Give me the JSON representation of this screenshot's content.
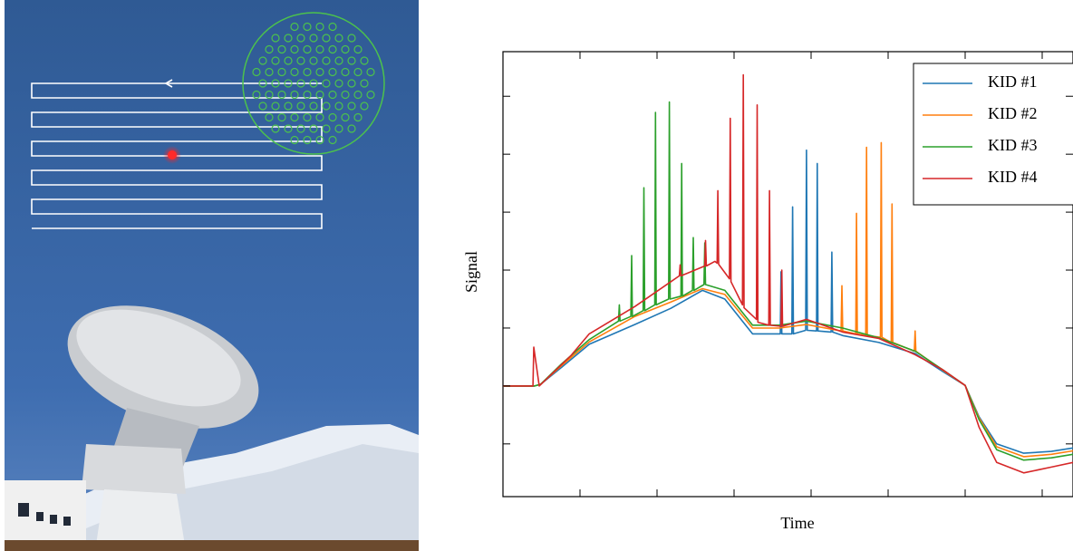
{
  "chart_data": {
    "type": "line",
    "xlabel": "Time",
    "ylabel": "Signal",
    "xlim": [
      0,
      7.4
    ],
    "xticks": [
      1,
      2,
      3,
      4,
      5,
      6,
      7
    ],
    "ylim": [
      0.09,
      7.77
    ],
    "yticks": [
      1,
      2,
      3,
      4,
      5,
      6,
      7
    ],
    "legend": "upper right",
    "series": [
      {
        "name": "KID #1",
        "color": "#1f77b4",
        "x": [
          0,
          0.41,
          0.49,
          0.76,
          1.12,
          1.71,
          2.18,
          2.59,
          2.88,
          3.24,
          3.59,
          3.6,
          3.61,
          3.62,
          3.75,
          3.76,
          3.77,
          3.93,
          3.94,
          3.95,
          4.07,
          4.08,
          4.09,
          4.26,
          4.27,
          4.28,
          4.41,
          4.88,
          5.35,
          5.71,
          6.0,
          6.18,
          6.41,
          6.76,
          7.12,
          7.4
        ],
        "values": [
          2.0,
          2.0,
          2.03,
          2.32,
          2.72,
          3.06,
          3.34,
          3.65,
          3.5,
          2.9,
          2.9,
          2.9,
          3.97,
          2.9,
          2.9,
          5.09,
          2.9,
          2.96,
          6.07,
          2.96,
          2.95,
          5.84,
          2.95,
          2.93,
          4.31,
          2.93,
          2.87,
          2.75,
          2.56,
          2.25,
          2.01,
          1.47,
          1.0,
          0.84,
          0.87,
          0.93
        ]
      },
      {
        "name": "KID #2",
        "color": "#ff7f0e",
        "x": [
          0,
          0.41,
          0.49,
          0.76,
          1.12,
          1.71,
          2.18,
          2.59,
          2.88,
          3.24,
          3.59,
          3.94,
          4.39,
          4.4,
          4.41,
          4.58,
          4.59,
          4.6,
          4.71,
          4.72,
          4.73,
          4.9,
          4.91,
          4.92,
          5.04,
          5.05,
          5.06,
          5.34,
          5.35,
          5.36,
          5.71,
          6.0,
          6.18,
          6.41,
          6.76,
          7.12,
          7.4
        ],
        "values": [
          2.0,
          2.0,
          2.03,
          2.35,
          2.76,
          3.2,
          3.45,
          3.68,
          3.58,
          3.0,
          3.0,
          3.06,
          2.95,
          3.73,
          2.95,
          2.9,
          4.98,
          2.9,
          2.87,
          6.12,
          2.87,
          2.84,
          6.2,
          2.84,
          2.75,
          5.14,
          2.75,
          2.6,
          2.95,
          2.6,
          2.27,
          2.01,
          1.45,
          0.95,
          0.78,
          0.82,
          0.88
        ]
      },
      {
        "name": "KID #3",
        "color": "#2ca02c",
        "x": [
          0,
          0.41,
          0.49,
          0.76,
          1.12,
          1.5,
          1.51,
          1.52,
          1.66,
          1.67,
          1.68,
          1.82,
          1.83,
          1.84,
          1.97,
          1.98,
          1.99,
          2.15,
          2.16,
          2.17,
          2.31,
          2.32,
          2.33,
          2.46,
          2.47,
          2.48,
          2.61,
          2.62,
          2.63,
          2.88,
          3.24,
          3.59,
          3.94,
          4.41,
          4.88,
          5.35,
          5.71,
          6.0,
          6.18,
          6.41,
          6.76,
          7.12,
          7.4
        ],
        "values": [
          2.0,
          2.0,
          2.03,
          2.38,
          2.8,
          3.12,
          3.4,
          3.12,
          3.2,
          4.25,
          3.2,
          3.3,
          5.42,
          3.3,
          3.4,
          6.72,
          3.4,
          3.5,
          6.9,
          3.5,
          3.55,
          5.84,
          3.55,
          3.65,
          4.56,
          3.65,
          3.75,
          4.47,
          3.75,
          3.65,
          3.05,
          3.05,
          3.12,
          3.0,
          2.83,
          2.6,
          2.28,
          2.01,
          1.42,
          0.9,
          0.72,
          0.76,
          0.82
        ]
      },
      {
        "name": "KID #4",
        "color": "#d62728",
        "x": [
          0,
          0.35,
          0.39,
          0.4,
          0.47,
          0.88,
          1.12,
          1.71,
          2.18,
          2.29,
          2.3,
          2.31,
          2.62,
          2.63,
          2.64,
          2.75,
          2.78,
          2.79,
          2.8,
          2.94,
          2.95,
          2.96,
          3.11,
          3.12,
          3.13,
          3.29,
          3.3,
          3.31,
          3.45,
          3.46,
          3.47,
          3.61,
          3.62,
          3.63,
          3.94,
          4.41,
          4.88,
          5.35,
          5.71,
          6.0,
          6.18,
          6.41,
          6.76,
          7.12,
          7.4
        ],
        "values": [
          2.0,
          2.0,
          2.0,
          2.67,
          2.0,
          2.52,
          2.9,
          3.37,
          3.8,
          3.9,
          4.09,
          3.9,
          4.07,
          4.51,
          4.07,
          4.15,
          4.12,
          5.37,
          4.1,
          3.85,
          6.62,
          3.8,
          3.4,
          7.37,
          3.35,
          3.15,
          6.85,
          3.1,
          3.05,
          5.37,
          3.05,
          3.03,
          4.0,
          3.03,
          3.15,
          2.93,
          2.82,
          2.54,
          2.28,
          2.01,
          1.29,
          0.68,
          0.5,
          0.6,
          0.68
        ]
      }
    ]
  }
}
